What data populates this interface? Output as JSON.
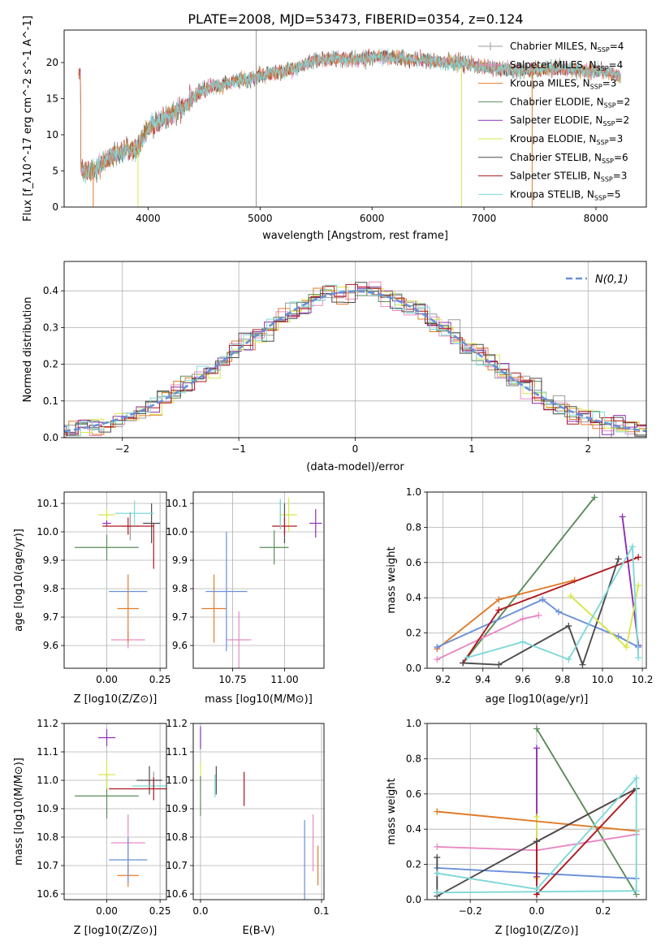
{
  "figure_title": "PLATE=2008, MJD=53473, FIBERID=0354, z=0.124",
  "colors": {
    "Chabrier MILES": "#9a9a9a",
    "Salpeter MILES": "#e78ac3",
    "Kroupa MILES": "#e07b2a",
    "Chabrier ELODIE": "#5b8c5a",
    "Salpeter ELODIE": "#8e2fb3",
    "Kroupa ELODIE": "#d7e84a",
    "Chabrier STELIB": "#4d4d4d",
    "Salpeter STELIB": "#b0171f",
    "Kroupa STELIB": "#7fd8d8",
    "normal": "#6a8fd8",
    "extra": "#6a8fd8"
  },
  "chart_data": [
    {
      "id": "spectrum",
      "type": "line",
      "xlabel": "wavelength [Angstrom, rest frame]",
      "ylabel": "Flux [f_λ10^-17 erg cm^-2 s^-1 A^-1]",
      "xlim": [
        3250,
        8450
      ],
      "ylim": [
        0,
        24.5
      ],
      "xticks": [
        4000,
        5000,
        6000,
        7000,
        8000
      ],
      "yticks": [
        0,
        5,
        10,
        15,
        20
      ],
      "grid": false,
      "legend_position": "right",
      "legend": [
        {
          "name": "Chabrier MILES",
          "nssp": "4",
          "marker": "plus"
        },
        {
          "name": "Salpeter MILES",
          "nssp": "4",
          "marker": "plus"
        },
        {
          "name": "Kroupa MILES",
          "nssp": "3",
          "marker": "line"
        },
        {
          "name": "Chabrier ELODIE",
          "nssp": "2",
          "marker": "line"
        },
        {
          "name": "Salpeter ELODIE",
          "nssp": "2",
          "marker": "line"
        },
        {
          "name": "Kroupa ELODIE",
          "nssp": "3",
          "marker": "line"
        },
        {
          "name": "Chabrier STELIB",
          "nssp": "6",
          "marker": "line"
        },
        {
          "name": "Salpeter STELIB",
          "nssp": "3",
          "marker": "line"
        },
        {
          "name": "Kroupa STELIB",
          "nssp": "5",
          "marker": "line"
        }
      ],
      "continuum": [
        [
          3400,
          5.2
        ],
        [
          3500,
          4.8
        ],
        [
          3600,
          6.2
        ],
        [
          3700,
          7.3
        ],
        [
          3800,
          7.8
        ],
        [
          3900,
          8.2
        ],
        [
          4000,
          10.8
        ],
        [
          4100,
          12.0
        ],
        [
          4200,
          12.8
        ],
        [
          4300,
          13.6
        ],
        [
          4400,
          15.2
        ],
        [
          4500,
          16.4
        ],
        [
          4600,
          16.8
        ],
        [
          4700,
          17.0
        ],
        [
          4800,
          17.5
        ],
        [
          4900,
          17.6
        ],
        [
          5000,
          18.2
        ],
        [
          5100,
          18.7
        ],
        [
          5200,
          18.6
        ],
        [
          5300,
          19.2
        ],
        [
          5400,
          19.8
        ],
        [
          5500,
          20.3
        ],
        [
          5600,
          20.5
        ],
        [
          5700,
          20.6
        ],
        [
          5800,
          20.4
        ],
        [
          5900,
          20.5
        ],
        [
          6000,
          20.7
        ],
        [
          6100,
          20.8
        ],
        [
          6200,
          20.6
        ],
        [
          6300,
          20.5
        ],
        [
          6400,
          20.4
        ],
        [
          6500,
          20.3
        ],
        [
          6600,
          20.1
        ],
        [
          6700,
          20.0
        ],
        [
          6800,
          19.9
        ],
        [
          6900,
          19.7
        ],
        [
          7000,
          19.4
        ],
        [
          7100,
          19.2
        ],
        [
          7200,
          19.1
        ],
        [
          7300,
          19.0
        ],
        [
          7400,
          18.8
        ],
        [
          7500,
          19.0
        ],
        [
          7600,
          19.1
        ],
        [
          7700,
          19.3
        ],
        [
          7800,
          19.0
        ],
        [
          7900,
          18.8
        ],
        [
          8000,
          18.9
        ],
        [
          8100,
          18.6
        ],
        [
          8200,
          18.2
        ]
      ],
      "spikes": [
        {
          "x": 3510,
          "y0": 0,
          "y1": 5.5,
          "series": "Kroupa MILES"
        },
        {
          "x": 3910,
          "y0": 0,
          "y1": 8.0,
          "series": "Kroupa ELODIE"
        },
        {
          "x": 4965,
          "y0": 0,
          "y1": 24.5,
          "series": "Chabrier MILES"
        },
        {
          "x": 6800,
          "y0": 0,
          "y1": 19.5,
          "series": "Kroupa ELODIE"
        },
        {
          "x": 7430,
          "y0": 0,
          "y1": 19.0,
          "series": "Kroupa MILES"
        }
      ]
    },
    {
      "id": "residuals",
      "type": "histogram",
      "xlabel": "(data-model)/error",
      "ylabel": "Normed distribution",
      "xlim": [
        -2.5,
        2.5
      ],
      "ylim": [
        0,
        0.48
      ],
      "xticks": [
        -2,
        -1,
        0,
        1,
        2
      ],
      "yticks": [
        0.0,
        0.1,
        0.2,
        0.3,
        0.4
      ],
      "grid": true,
      "legend_position": "top-right",
      "legend_label": "N(0,1)",
      "bin_width": 0.1
    },
    {
      "id": "age_vs_Z",
      "type": "errorbar",
      "xlabel": "Z [log10(Z/Z⊙)]",
      "ylabel": "age [log10(age/yr)]",
      "xlim": [
        -0.2,
        0.28
      ],
      "ylim": [
        9.52,
        10.14
      ],
      "xticks": [
        0.0,
        0.25
      ],
      "xticklabels": [
        "0.00",
        "0.25"
      ],
      "yticks": [
        9.6,
        9.7,
        9.8,
        9.9,
        10.0,
        10.1
      ],
      "grid": true,
      "points": [
        {
          "series": "Chabrier MILES",
          "x": 0.11,
          "xerr": 0.04,
          "y": 10.02,
          "yerr": 0.05
        },
        {
          "series": "Salpeter MILES",
          "x": 0.1,
          "xerr": 0.08,
          "y": 9.62,
          "yerr": 0.03
        },
        {
          "series": "Kroupa MILES",
          "x": 0.1,
          "xerr": 0.05,
          "y": 9.73,
          "yerr": 0.12
        },
        {
          "series": "Chabrier ELODIE",
          "x": 0.0,
          "xerr": 0.15,
          "y": 9.945,
          "yerr": 0.045
        },
        {
          "series": "Salpeter ELODIE",
          "x": 0.0,
          "xerr": 0.02,
          "y": 10.03,
          "yerr": 0.01
        },
        {
          "series": "Kroupa ELODIE",
          "x": 0.0,
          "xerr": 0.04,
          "y": 10.06,
          "yerr": 0.02
        },
        {
          "series": "Chabrier STELIB",
          "x": 0.21,
          "xerr": 0.04,
          "y": 10.03,
          "yerr": 0.07
        },
        {
          "series": "Salpeter STELIB",
          "x": 0.1,
          "xerr": 0.12,
          "y": 10.02,
          "yerr": 0.03
        },
        {
          "series": "Kroupa STELIB",
          "x": 0.13,
          "xerr": 0.09,
          "y": 10.065,
          "yerr": 0.045
        },
        {
          "series": "extra",
          "x": 0.1,
          "xerr": 0.0,
          "y": 10.0,
          "yerr": 0.0
        },
        {
          "series": "normal",
          "x": 0.1,
          "xerr": 0.09,
          "y": 9.79,
          "yerr": 0.0
        },
        {
          "series": "Salpeter STELIB",
          "x": 0.22,
          "xerr": 0.0,
          "y": 9.95,
          "yerr": 0.08
        }
      ]
    },
    {
      "id": "age_vs_mass",
      "type": "errorbar",
      "xlabel": "mass [log10(M/M⊙)]",
      "ylabel": "",
      "xlim": [
        10.56,
        11.19
      ],
      "ylim": [
        9.52,
        10.14
      ],
      "xticks": [
        10.75,
        11.0
      ],
      "xticklabels": [
        "10.75",
        "11.00"
      ],
      "yticks": [
        9.6,
        9.7,
        9.8,
        9.9,
        10.0,
        10.1
      ],
      "grid": true,
      "points": [
        {
          "series": "Chabrier MILES",
          "x": 10.98,
          "xerr": 0.0,
          "y": 10.06,
          "yerr": 0.05
        },
        {
          "series": "Salpeter MILES",
          "x": 10.78,
          "xerr": 0.06,
          "y": 9.62,
          "yerr": 0.1
        },
        {
          "series": "Kroupa MILES",
          "x": 10.66,
          "xerr": 0.06,
          "y": 9.73,
          "yerr": 0.12
        },
        {
          "series": "Chabrier ELODIE",
          "x": 10.95,
          "xerr": 0.07,
          "y": 9.945,
          "yerr": 0.0
        },
        {
          "series": "Salpeter ELODIE",
          "x": 11.15,
          "xerr": 0.03,
          "y": 10.03,
          "yerr": 0.05
        },
        {
          "series": "Kroupa ELODIE",
          "x": 11.02,
          "xerr": 0.04,
          "y": 10.06,
          "yerr": 0.06
        },
        {
          "series": "Chabrier STELIB",
          "x": 11.0,
          "xerr": 0.0,
          "y": 10.03,
          "yerr": 0.07
        },
        {
          "series": "Salpeter STELIB",
          "x": 11.0,
          "xerr": 0.06,
          "y": 10.02,
          "yerr": 0.03
        },
        {
          "series": "Kroupa STELIB",
          "x": 10.98,
          "xerr": 0.0,
          "y": 10.065,
          "yerr": 0.05
        },
        {
          "series": "normal",
          "x": 10.72,
          "xerr": 0.1,
          "y": 9.79,
          "yerr": 0.21
        },
        {
          "series": "Chabrier ELODIE",
          "x": 10.95,
          "xerr": 0.0,
          "y": 9.945,
          "yerr": 0.06
        }
      ]
    },
    {
      "id": "weight_vs_age",
      "type": "line",
      "xlabel": "age [log10(age/yr)]",
      "ylabel": "mass weight",
      "xlim": [
        9.12,
        10.22
      ],
      "ylim": [
        0,
        1.0
      ],
      "xticks": [
        9.2,
        9.4,
        9.6,
        9.8,
        10.0,
        10.2
      ],
      "yticks": [
        0.0,
        0.2,
        0.4,
        0.6,
        0.8,
        1.0
      ],
      "grid": true,
      "series": [
        {
          "name": "Chabrier ELODIE",
          "x": [
            9.3,
            9.96
          ],
          "y": [
            0.03,
            0.97
          ]
        },
        {
          "name": "Salpeter ELODIE",
          "x": [
            10.1,
            10.18
          ],
          "y": [
            0.86,
            0.13
          ]
        },
        {
          "name": "Kroupa MILES",
          "x": [
            9.17,
            9.48,
            9.86
          ],
          "y": [
            0.11,
            0.39,
            0.5
          ]
        },
        {
          "name": "normal",
          "x": [
            9.17,
            9.7,
            9.78,
            10.08,
            10.18
          ],
          "y": [
            0.12,
            0.39,
            0.32,
            0.18,
            0.12
          ]
        },
        {
          "name": "Salpeter MILES",
          "x": [
            9.17,
            9.6,
            9.68
          ],
          "y": [
            0.05,
            0.28,
            0.3
          ]
        },
        {
          "name": "Salpeter STELIB",
          "x": [
            9.3,
            9.48,
            10.18
          ],
          "y": [
            0.03,
            0.33,
            0.63
          ]
        },
        {
          "name": "Chabrier STELIB",
          "x": [
            9.3,
            9.48,
            9.83,
            9.9,
            10.08
          ],
          "y": [
            0.03,
            0.02,
            0.24,
            0.02,
            0.62
          ]
        },
        {
          "name": "Kroupa ELODIE",
          "x": [
            9.84,
            10.12,
            10.18
          ],
          "y": [
            0.41,
            0.12,
            0.47
          ]
        },
        {
          "name": "Kroupa STELIB",
          "x": [
            9.32,
            9.6,
            9.83,
            10.15,
            10.18
          ],
          "y": [
            0.06,
            0.15,
            0.05,
            0.69,
            0.06
          ]
        }
      ]
    },
    {
      "id": "mass_vs_Z",
      "type": "errorbar",
      "xlabel": "Z [log10(Z/Z⊙)]",
      "ylabel": "mass [log10(M/M⊙)]",
      "xlim": [
        -0.2,
        0.28
      ],
      "ylim": [
        10.58,
        11.2
      ],
      "xticks": [
        0.0,
        0.25
      ],
      "xticklabels": [
        "0.00",
        "0.25"
      ],
      "yticks": [
        10.6,
        10.7,
        10.8,
        10.9,
        11.0,
        11.1,
        11.2
      ],
      "grid": true,
      "points": [
        {
          "series": "Chabrier MILES",
          "x": 0.22,
          "xerr": 0.0,
          "y": 11.0,
          "yerr": 0.03
        },
        {
          "series": "Salpeter MILES",
          "x": 0.1,
          "xerr": 0.08,
          "y": 10.78,
          "yerr": 0.1
        },
        {
          "series": "Kroupa MILES",
          "x": 0.1,
          "xerr": 0.05,
          "y": 10.665,
          "yerr": 0.04
        },
        {
          "series": "Chabrier ELODIE",
          "x": 0.0,
          "xerr": 0.15,
          "y": 10.945,
          "yerr": 0.08
        },
        {
          "series": "Salpeter ELODIE",
          "x": 0.0,
          "xerr": 0.04,
          "y": 11.15,
          "yerr": 0.03
        },
        {
          "series": "Kroupa ELODIE",
          "x": 0.0,
          "xerr": 0.04,
          "y": 11.02,
          "yerr": 0.05
        },
        {
          "series": "Chabrier STELIB",
          "x": 0.2,
          "xerr": 0.06,
          "y": 11.0,
          "yerr": 0.05
        },
        {
          "series": "Salpeter STELIB",
          "x": 0.15,
          "xerr": 0.14,
          "y": 10.97,
          "yerr": 0.0
        },
        {
          "series": "Kroupa STELIB",
          "x": 0.22,
          "xerr": 0.1,
          "y": 10.98,
          "yerr": 0.0
        },
        {
          "series": "normal",
          "x": 0.1,
          "xerr": 0.09,
          "y": 10.72,
          "yerr": 0.08
        },
        {
          "series": "Salpeter STELIB",
          "x": 0.22,
          "xerr": 0.0,
          "y": 10.97,
          "yerr": 0.04
        }
      ]
    },
    {
      "id": "mass_vs_EBV",
      "type": "errorbar",
      "xlabel": "E(B-V)",
      "ylabel": "",
      "xlim": [
        -0.006,
        0.102
      ],
      "ylim": [
        10.58,
        11.2
      ],
      "xticks": [
        0.0,
        0.1
      ],
      "xticklabels": [
        "0.0",
        "0.1"
      ],
      "yticks": [
        10.6,
        10.7,
        10.8,
        10.9,
        11.0,
        11.1,
        11.2
      ],
      "grid": true,
      "points": [
        {
          "series": "Salpeter ELODIE",
          "x": 0.0,
          "xerr": 0.0,
          "y": 11.15,
          "yerr": 0.04
        },
        {
          "series": "Kroupa ELODIE",
          "x": 0.0,
          "xerr": 0.0,
          "y": 11.02,
          "yerr": 0.04
        },
        {
          "series": "Chabrier ELODIE",
          "x": 0.0,
          "xerr": 0.0,
          "y": 10.945,
          "yerr": 0.07
        },
        {
          "series": "Chabrier STELIB",
          "x": 0.013,
          "xerr": 0.0,
          "y": 11.0,
          "yerr": 0.05
        },
        {
          "series": "Kroupa STELIB",
          "x": 0.012,
          "xerr": 0.0,
          "y": 10.98,
          "yerr": 0.04
        },
        {
          "series": "Salpeter STELIB",
          "x": 0.036,
          "xerr": 0.0,
          "y": 10.97,
          "yerr": 0.06
        },
        {
          "series": "normal",
          "x": 0.086,
          "xerr": 0.0,
          "y": 10.72,
          "yerr": 0.14
        },
        {
          "series": "Salpeter MILES",
          "x": 0.093,
          "xerr": 0.0,
          "y": 10.78,
          "yerr": 0.1
        },
        {
          "series": "Kroupa MILES",
          "x": 0.097,
          "xerr": 0.0,
          "y": 10.7,
          "yerr": 0.07
        }
      ]
    },
    {
      "id": "weight_vs_Z",
      "type": "line",
      "xlabel": "Z [log10(Z/Z⊙)]",
      "ylabel": "mass weight",
      "xlim": [
        -0.33,
        0.33
      ],
      "ylim": [
        0,
        1.0
      ],
      "xticks": [
        -0.2,
        0.0,
        0.2
      ],
      "xticklabels": [
        "−0.2",
        "0.0",
        "0.2"
      ],
      "yticks": [
        0.0,
        0.2,
        0.4,
        0.6,
        0.8,
        1.0
      ],
      "grid": true,
      "series": [
        {
          "name": "Chabrier ELODIE",
          "x": [
            0.0,
            0.3
          ],
          "y": [
            0.97,
            0.03
          ]
        },
        {
          "name": "Salpeter ELODIE",
          "x": [
            0.0,
            0.0
          ],
          "y": [
            0.13,
            0.86
          ]
        },
        {
          "name": "Kroupa ELODIE",
          "x": [
            0.0,
            0.0
          ],
          "y": [
            0.12,
            0.47
          ]
        },
        {
          "name": "Kroupa MILES",
          "x": [
            -0.3,
            0.3
          ],
          "y": [
            0.5,
            0.39
          ]
        },
        {
          "name": "normal",
          "x": [
            -0.3,
            0.0,
            0.3
          ],
          "y": [
            0.18,
            0.15,
            0.12
          ]
        },
        {
          "name": "Salpeter MILES",
          "x": [
            -0.3,
            0.0,
            0.3
          ],
          "y": [
            0.3,
            0.28,
            0.37
          ]
        },
        {
          "name": "Salpeter STELIB",
          "x": [
            0.0,
            0.0,
            0.3,
            0.0
          ],
          "y": [
            0.03,
            0.33,
            0.63,
            0.03
          ]
        },
        {
          "name": "Chabrier STELIB",
          "x": [
            -0.3,
            -0.3,
            0.0,
            0.3
          ],
          "y": [
            0.24,
            0.02,
            0.33,
            0.63
          ]
        },
        {
          "name": "Kroupa STELIB",
          "x": [
            -0.3,
            0.0,
            0.3,
            0.3,
            -0.3
          ],
          "y": [
            0.15,
            0.06,
            0.69,
            0.05,
            0.04
          ]
        }
      ]
    }
  ]
}
